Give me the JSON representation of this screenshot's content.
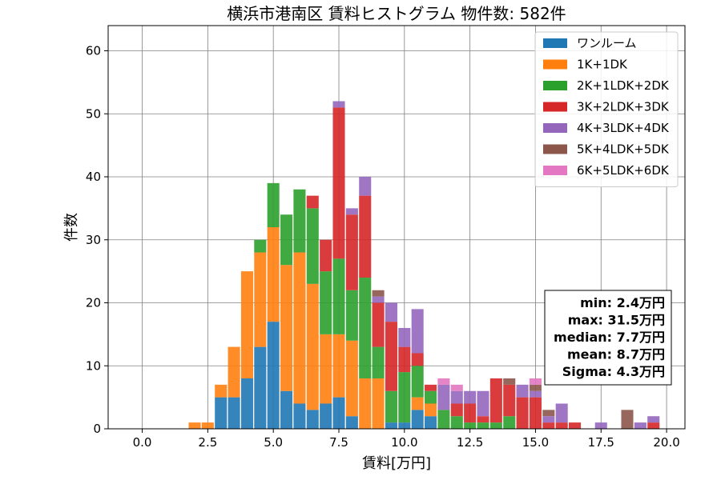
{
  "chart_data": {
    "type": "bar",
    "stacked": true,
    "title": "横浜市港南区 賃料ヒストグラム 物件数: 582件",
    "xlabel": "賃料[万円]",
    "ylabel": "件数",
    "xlim": [
      -1.3,
      20.7
    ],
    "ylim": [
      0,
      64
    ],
    "xticks": [
      "0.0",
      "2.5",
      "5.0",
      "7.5",
      "10.0",
      "12.5",
      "15.0",
      "17.5",
      "20.0"
    ],
    "xtick_values": [
      0,
      2.5,
      5,
      7.5,
      10,
      12.5,
      15,
      17.5,
      20
    ],
    "yticks": [
      0,
      10,
      20,
      30,
      40,
      50,
      60
    ],
    "grid": true,
    "legend_position": "top-right",
    "bin_width": 0.5,
    "bins": [
      2.0,
      2.5,
      3.0,
      3.5,
      4.0,
      4.5,
      5.0,
      5.5,
      6.0,
      6.5,
      7.0,
      7.5,
      8.0,
      8.5,
      9.0,
      9.5,
      10.0,
      10.5,
      11.0,
      11.5,
      12.0,
      12.5,
      13.0,
      13.5,
      14.0,
      14.5,
      15.0,
      15.5,
      16.0,
      16.5,
      17.0,
      17.5,
      18.0,
      18.5,
      19.0,
      19.5
    ],
    "series": [
      {
        "name": "ワンルーム",
        "color": "#1f77b4",
        "values": [
          0,
          0,
          5,
          5,
          8,
          13,
          17,
          6,
          4,
          3,
          4,
          5,
          2,
          0,
          0,
          1,
          1,
          3,
          2,
          0,
          0,
          0,
          0,
          0,
          0,
          0,
          0,
          0,
          0,
          0,
          0,
          0,
          0,
          0,
          0,
          0
        ]
      },
      {
        "name": "1K+1DK",
        "color": "#ff7f0e",
        "values": [
          1,
          1,
          2,
          8,
          17,
          15,
          15,
          20,
          24,
          20,
          11,
          10,
          12,
          8,
          8,
          0,
          0,
          2,
          2,
          0,
          0,
          0,
          0,
          0,
          0,
          0,
          0,
          0,
          0,
          0,
          0,
          0,
          0,
          0,
          0,
          0
        ]
      },
      {
        "name": "2K+1LDK+2DK",
        "color": "#2ca02c",
        "values": [
          0,
          0,
          0,
          0,
          0,
          2,
          7,
          8,
          10,
          12,
          10,
          12,
          8,
          16,
          5,
          5,
          8,
          5,
          2,
          3,
          2,
          1,
          1,
          1,
          2,
          0,
          0,
          0,
          0,
          0,
          0,
          0,
          0,
          0,
          0,
          0
        ]
      },
      {
        "name": "3K+2LDK+3DK",
        "color": "#d62728",
        "values": [
          0,
          0,
          0,
          0,
          0,
          0,
          0,
          0,
          0,
          2,
          5,
          24,
          12,
          13,
          7,
          11,
          4,
          2,
          1,
          0,
          2,
          3,
          1,
          7,
          5,
          5,
          5,
          1,
          1,
          1,
          0,
          0,
          0,
          0,
          0,
          1
        ]
      },
      {
        "name": "4K+3LDK+4DK",
        "color": "#9467bd",
        "values": [
          0,
          0,
          0,
          0,
          0,
          0,
          0,
          0,
          0,
          0,
          0,
          1,
          1,
          3,
          1,
          3,
          3,
          7,
          0,
          4,
          2,
          2,
          4,
          0,
          0,
          2,
          1,
          1,
          3,
          0,
          0,
          1,
          0,
          0,
          1,
          1
        ]
      },
      {
        "name": "5K+4LDK+5DK",
        "color": "#8c564b",
        "values": [
          0,
          0,
          0,
          0,
          0,
          0,
          0,
          0,
          0,
          0,
          0,
          0,
          0,
          0,
          1,
          0,
          0,
          0,
          0,
          0,
          0,
          0,
          0,
          0,
          1,
          0,
          1,
          1,
          0,
          0,
          0,
          0,
          0,
          3,
          0,
          0
        ]
      },
      {
        "name": "6K+5LDK+6DK",
        "color": "#e377c2",
        "values": [
          0,
          0,
          0,
          0,
          0,
          0,
          0,
          0,
          0,
          0,
          0,
          0,
          0,
          0,
          0,
          0,
          0,
          0,
          0,
          1,
          1,
          0,
          0,
          0,
          0,
          0,
          1,
          0,
          0,
          0,
          0,
          0,
          0,
          0,
          0,
          0
        ]
      }
    ],
    "stats": [
      "min: 2.4万円",
      "max: 31.5万円",
      "median: 7.7万円",
      "mean: 8.7万円",
      "Sigma: 4.3万円"
    ]
  }
}
